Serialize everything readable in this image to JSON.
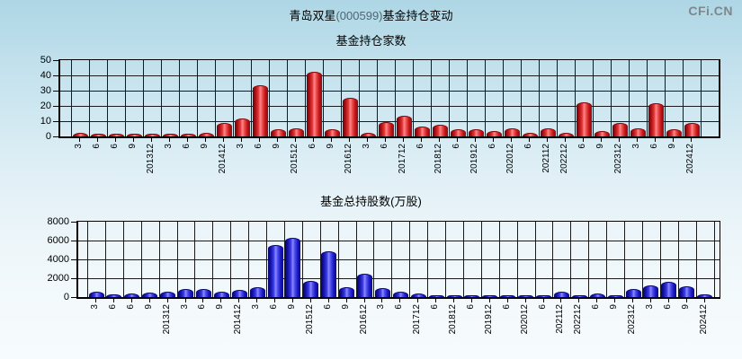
{
  "header": {
    "title_name": "青岛双星",
    "title_code": "(000599)",
    "title_suffix": "基金持仓变动",
    "logo": "CFi.CN"
  },
  "colors": {
    "background_top": "#aed6e5",
    "background_bottom": "#f6fbfd",
    "grid": "#1a1a1a",
    "red_bar": "#dd2222",
    "blue_bar": "#3333cc",
    "logo_gray": "#7e878c",
    "title_code_gray": "#4f6673"
  },
  "chart_data": [
    {
      "type": "bar",
      "title": "青岛双星(000599)基金持仓变动",
      "subtitle": "基金持仓家数",
      "bar_color": "red",
      "grid": true,
      "ylim": [
        0,
        50
      ],
      "yticks": [
        0,
        10,
        20,
        30,
        40,
        50
      ],
      "xlabel": "",
      "ylabel": "",
      "categories": [
        "3",
        "6",
        "6",
        "9",
        "201312",
        "3",
        "6",
        "9",
        "201412",
        "3",
        "6",
        "9",
        "201512",
        "6",
        "9",
        "201612",
        "3",
        "6",
        "201712",
        "6",
        "201812",
        "6",
        "201912",
        "6",
        "202012",
        "6",
        "202112",
        "202212",
        "6",
        "9",
        "202312",
        "3",
        "6",
        "9",
        "202412"
      ],
      "values": [
        2,
        1,
        1,
        1,
        1,
        1,
        1,
        2,
        8,
        11,
        33,
        4,
        5,
        42,
        4,
        25,
        2,
        9,
        13,
        6,
        7,
        4,
        4,
        3,
        5,
        2,
        5,
        2,
        22,
        3,
        8,
        5,
        21,
        4,
        8
      ]
    },
    {
      "type": "bar",
      "subtitle": "基金总持股数(万股)",
      "bar_color": "blue",
      "grid": true,
      "ylim": [
        0,
        8000
      ],
      "yticks": [
        0,
        2000,
        4000,
        6000,
        8000
      ],
      "xlabel": "",
      "ylabel": "",
      "categories": [
        "3",
        "6",
        "6",
        "9",
        "201312",
        "3",
        "6",
        "9",
        "201412",
        "3",
        "6",
        "9",
        "201512",
        "6",
        "9",
        "201612",
        "3",
        "6",
        "201712",
        "6",
        "201812",
        "6",
        "201912",
        "6",
        "202012",
        "6",
        "202112",
        "202212",
        "6",
        "9",
        "202312",
        "3",
        "6",
        "9",
        "202412"
      ],
      "values": [
        450,
        200,
        250,
        400,
        500,
        750,
        750,
        450,
        700,
        1000,
        5400,
        6200,
        1600,
        4800,
        1000,
        2400,
        900,
        500,
        300,
        100,
        100,
        50,
        50,
        50,
        100,
        100,
        500,
        100,
        300,
        100,
        800,
        1100,
        1500,
        1050,
        150
      ]
    }
  ]
}
